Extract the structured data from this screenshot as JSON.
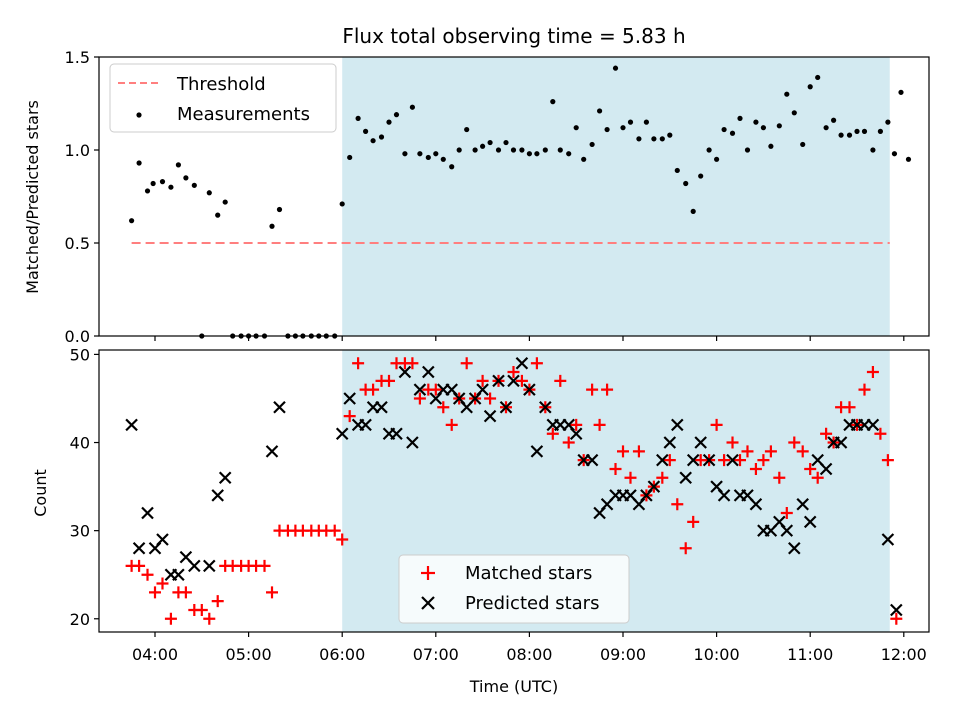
{
  "chart_data": {
    "type": "scatter",
    "title": "Flux total observing time = 5.83 h",
    "time_tick_labels": [
      "04:00",
      "05:00",
      "06:00",
      "07:00",
      "08:00",
      "09:00",
      "10:00",
      "11:00",
      "12:00"
    ],
    "shaded_interval_hours": [
      6.0,
      11.85
    ],
    "shade_color": "#d3eaf1",
    "top": {
      "ylabel": "Matched/Predicted stars",
      "ylim": [
        0,
        1.5
      ],
      "yticks": [
        "0.0",
        "0.5",
        "1.0",
        "1.5"
      ],
      "threshold": {
        "name": "Threshold",
        "value": 0.5,
        "x_range": [
          3.75,
          11.85
        ],
        "color": "#ff7f7f"
      },
      "measurements": {
        "name": "Measurements",
        "color": "#000000",
        "points": [
          [
            3.75,
            0.62
          ],
          [
            3.83,
            0.93
          ],
          [
            3.92,
            0.78
          ],
          [
            3.98,
            0.82
          ],
          [
            4.08,
            0.83
          ],
          [
            4.17,
            0.8
          ],
          [
            4.25,
            0.92
          ],
          [
            4.33,
            0.85
          ],
          [
            4.42,
            0.81
          ],
          [
            4.5,
            0.0
          ],
          [
            4.58,
            0.77
          ],
          [
            4.67,
            0.65
          ],
          [
            4.75,
            0.72
          ],
          [
            4.83,
            0.0
          ],
          [
            4.92,
            0.0
          ],
          [
            5.0,
            0.0
          ],
          [
            5.08,
            0.0
          ],
          [
            5.17,
            0.0
          ],
          [
            5.25,
            0.59
          ],
          [
            5.33,
            0.68
          ],
          [
            5.42,
            0.0
          ],
          [
            5.5,
            0.0
          ],
          [
            5.58,
            0.0
          ],
          [
            5.67,
            0.0
          ],
          [
            5.75,
            0.0
          ],
          [
            5.83,
            0.0
          ],
          [
            5.92,
            0.0
          ],
          [
            6.0,
            0.71
          ],
          [
            6.08,
            0.96
          ],
          [
            6.17,
            1.17
          ],
          [
            6.25,
            1.1
          ],
          [
            6.33,
            1.05
          ],
          [
            6.42,
            1.07
          ],
          [
            6.5,
            1.15
          ],
          [
            6.58,
            1.19
          ],
          [
            6.67,
            0.98
          ],
          [
            6.75,
            1.23
          ],
          [
            6.83,
            0.98
          ],
          [
            6.92,
            0.96
          ],
          [
            7.0,
            0.98
          ],
          [
            7.08,
            0.95
          ],
          [
            7.17,
            0.91
          ],
          [
            7.25,
            1.0
          ],
          [
            7.33,
            1.11
          ],
          [
            7.42,
            1.0
          ],
          [
            7.5,
            1.02
          ],
          [
            7.58,
            1.04
          ],
          [
            7.67,
            1.0
          ],
          [
            7.75,
            1.04
          ],
          [
            7.83,
            1.0
          ],
          [
            7.92,
            1.0
          ],
          [
            8.0,
            0.98
          ],
          [
            8.08,
            0.98
          ],
          [
            8.17,
            1.0
          ],
          [
            8.25,
            1.26
          ],
          [
            8.33,
            1.0
          ],
          [
            8.42,
            0.98
          ],
          [
            8.5,
            1.12
          ],
          [
            8.58,
            0.95
          ],
          [
            8.67,
            1.03
          ],
          [
            8.75,
            1.21
          ],
          [
            8.83,
            1.11
          ],
          [
            8.92,
            1.44
          ],
          [
            9.0,
            1.12
          ],
          [
            9.08,
            1.15
          ],
          [
            9.17,
            1.06
          ],
          [
            9.25,
            1.15
          ],
          [
            9.33,
            1.06
          ],
          [
            9.42,
            1.06
          ],
          [
            9.5,
            1.08
          ],
          [
            9.58,
            0.89
          ],
          [
            9.67,
            0.82
          ],
          [
            9.75,
            0.67
          ],
          [
            9.83,
            0.86
          ],
          [
            9.92,
            1.0
          ],
          [
            10.0,
            0.95
          ],
          [
            10.08,
            1.11
          ],
          [
            10.17,
            1.09
          ],
          [
            10.25,
            1.17
          ],
          [
            10.33,
            1.0
          ],
          [
            10.42,
            1.15
          ],
          [
            10.5,
            1.12
          ],
          [
            10.58,
            1.02
          ],
          [
            10.67,
            1.13
          ],
          [
            10.75,
            1.3
          ],
          [
            10.83,
            1.2
          ],
          [
            10.92,
            1.03
          ],
          [
            11.0,
            1.34
          ],
          [
            11.08,
            1.39
          ],
          [
            11.17,
            1.12
          ],
          [
            11.25,
            1.16
          ],
          [
            11.33,
            1.08
          ],
          [
            11.42,
            1.08
          ],
          [
            11.5,
            1.1
          ],
          [
            11.58,
            1.1
          ],
          [
            11.67,
            1.0
          ],
          [
            11.75,
            1.1
          ],
          [
            11.83,
            1.15
          ],
          [
            11.9,
            0.98
          ],
          [
            11.97,
            1.31
          ],
          [
            12.05,
            0.95
          ]
        ]
      }
    },
    "bottom": {
      "ylabel": "Count",
      "xlabel": "Time (UTC)",
      "ylim": [
        18.5,
        50.5
      ],
      "yticks": [
        "20",
        "30",
        "40",
        "50"
      ],
      "matched": {
        "name": "Matched stars",
        "color": "#ff0000",
        "points": [
          [
            3.75,
            26
          ],
          [
            3.83,
            26
          ],
          [
            3.92,
            25
          ],
          [
            4.0,
            23
          ],
          [
            4.08,
            24
          ],
          [
            4.17,
            20
          ],
          [
            4.25,
            23
          ],
          [
            4.33,
            23
          ],
          [
            4.42,
            21
          ],
          [
            4.5,
            21
          ],
          [
            4.58,
            20
          ],
          [
            4.67,
            22
          ],
          [
            4.75,
            26
          ],
          [
            4.83,
            26
          ],
          [
            4.92,
            26
          ],
          [
            5.0,
            26
          ],
          [
            5.08,
            26
          ],
          [
            5.17,
            26
          ],
          [
            5.25,
            23
          ],
          [
            5.33,
            30
          ],
          [
            5.42,
            30
          ],
          [
            5.5,
            30
          ],
          [
            5.58,
            30
          ],
          [
            5.67,
            30
          ],
          [
            5.75,
            30
          ],
          [
            5.83,
            30
          ],
          [
            5.92,
            30
          ],
          [
            6.0,
            29
          ],
          [
            6.08,
            43
          ],
          [
            6.17,
            49
          ],
          [
            6.25,
            46
          ],
          [
            6.33,
            46
          ],
          [
            6.42,
            47
          ],
          [
            6.5,
            47
          ],
          [
            6.58,
            49
          ],
          [
            6.67,
            49
          ],
          [
            6.75,
            49
          ],
          [
            6.83,
            45
          ],
          [
            6.92,
            46
          ],
          [
            7.0,
            46
          ],
          [
            7.08,
            44
          ],
          [
            7.17,
            42
          ],
          [
            7.25,
            45
          ],
          [
            7.33,
            49
          ],
          [
            7.42,
            45
          ],
          [
            7.5,
            47
          ],
          [
            7.58,
            45
          ],
          [
            7.67,
            47
          ],
          [
            7.75,
            44
          ],
          [
            7.83,
            48
          ],
          [
            7.92,
            47
          ],
          [
            8.0,
            46
          ],
          [
            8.08,
            49
          ],
          [
            8.17,
            44
          ],
          [
            8.25,
            41
          ],
          [
            8.33,
            47
          ],
          [
            8.42,
            40
          ],
          [
            8.5,
            42
          ],
          [
            8.58,
            38
          ],
          [
            8.67,
            46
          ],
          [
            8.75,
            42
          ],
          [
            8.83,
            46
          ],
          [
            8.92,
            37
          ],
          [
            9.0,
            39
          ],
          [
            9.08,
            36
          ],
          [
            9.17,
            39
          ],
          [
            9.25,
            34
          ],
          [
            9.33,
            35
          ],
          [
            9.42,
            36
          ],
          [
            9.5,
            38
          ],
          [
            9.58,
            33
          ],
          [
            9.67,
            28
          ],
          [
            9.75,
            31
          ],
          [
            9.83,
            38
          ],
          [
            9.92,
            38
          ],
          [
            10.0,
            42
          ],
          [
            10.08,
            38
          ],
          [
            10.17,
            40
          ],
          [
            10.25,
            38
          ],
          [
            10.33,
            39
          ],
          [
            10.42,
            37
          ],
          [
            10.5,
            38
          ],
          [
            10.58,
            39
          ],
          [
            10.67,
            36
          ],
          [
            10.75,
            32
          ],
          [
            10.83,
            40
          ],
          [
            10.92,
            39
          ],
          [
            11.0,
            37
          ],
          [
            11.08,
            36
          ],
          [
            11.17,
            41
          ],
          [
            11.25,
            40
          ],
          [
            11.33,
            44
          ],
          [
            11.42,
            44
          ],
          [
            11.5,
            42
          ],
          [
            11.58,
            46
          ],
          [
            11.67,
            48
          ],
          [
            11.75,
            41
          ],
          [
            11.83,
            38
          ],
          [
            11.92,
            20
          ]
        ]
      },
      "predicted": {
        "name": "Predicted stars",
        "color": "#000000",
        "points": [
          [
            3.75,
            42
          ],
          [
            3.83,
            28
          ],
          [
            3.92,
            32
          ],
          [
            4.0,
            28
          ],
          [
            4.08,
            29
          ],
          [
            4.17,
            25
          ],
          [
            4.25,
            25
          ],
          [
            4.33,
            27
          ],
          [
            4.42,
            26
          ],
          [
            4.58,
            26
          ],
          [
            4.67,
            34
          ],
          [
            4.75,
            36
          ],
          [
            5.25,
            39
          ],
          [
            5.33,
            44
          ],
          [
            6.0,
            41
          ],
          [
            6.08,
            45
          ],
          [
            6.17,
            42
          ],
          [
            6.25,
            42
          ],
          [
            6.33,
            44
          ],
          [
            6.42,
            44
          ],
          [
            6.5,
            41
          ],
          [
            6.58,
            41
          ],
          [
            6.67,
            48
          ],
          [
            6.75,
            40
          ],
          [
            6.83,
            46
          ],
          [
            6.92,
            48
          ],
          [
            7.0,
            45
          ],
          [
            7.08,
            46
          ],
          [
            7.17,
            46
          ],
          [
            7.25,
            45
          ],
          [
            7.33,
            44
          ],
          [
            7.42,
            45
          ],
          [
            7.5,
            46
          ],
          [
            7.58,
            43
          ],
          [
            7.67,
            47
          ],
          [
            7.75,
            44
          ],
          [
            7.83,
            47
          ],
          [
            7.92,
            49
          ],
          [
            8.0,
            46
          ],
          [
            8.08,
            39
          ],
          [
            8.17,
            44
          ],
          [
            8.25,
            42
          ],
          [
            8.33,
            42
          ],
          [
            8.42,
            42
          ],
          [
            8.5,
            41
          ],
          [
            8.58,
            38
          ],
          [
            8.67,
            38
          ],
          [
            8.75,
            32
          ],
          [
            8.83,
            33
          ],
          [
            8.92,
            34
          ],
          [
            9.0,
            34
          ],
          [
            9.08,
            34
          ],
          [
            9.17,
            33
          ],
          [
            9.25,
            34
          ],
          [
            9.33,
            35
          ],
          [
            9.42,
            38
          ],
          [
            9.5,
            40
          ],
          [
            9.58,
            42
          ],
          [
            9.67,
            36
          ],
          [
            9.75,
            38
          ],
          [
            9.83,
            40
          ],
          [
            9.92,
            38
          ],
          [
            10.0,
            35
          ],
          [
            10.08,
            34
          ],
          [
            10.17,
            38
          ],
          [
            10.25,
            34
          ],
          [
            10.33,
            34
          ],
          [
            10.42,
            33
          ],
          [
            10.5,
            30
          ],
          [
            10.58,
            30
          ],
          [
            10.67,
            31
          ],
          [
            10.75,
            30
          ],
          [
            10.83,
            28
          ],
          [
            10.92,
            33
          ],
          [
            11.0,
            31
          ],
          [
            11.08,
            38
          ],
          [
            11.17,
            37
          ],
          [
            11.25,
            40
          ],
          [
            11.33,
            40
          ],
          [
            11.42,
            42
          ],
          [
            11.5,
            42
          ],
          [
            11.58,
            42
          ],
          [
            11.67,
            42
          ],
          [
            11.83,
            29
          ],
          [
            11.92,
            21
          ]
        ]
      }
    }
  }
}
